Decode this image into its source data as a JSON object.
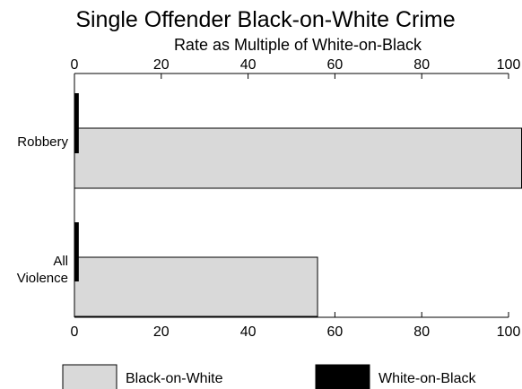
{
  "chart_data": {
    "type": "bar",
    "orientation": "horizontal",
    "title": "Single Offender Black-on-White Crime",
    "subtitle": "Rate as Multiple of White-on-Black",
    "categories": [
      {
        "lines": [
          "Robbery"
        ]
      },
      {
        "lines": [
          "All",
          "Violence"
        ]
      }
    ],
    "series": [
      {
        "name": "Black-on-White",
        "values": [
          103,
          56
        ],
        "color": "#d9d9d9"
      },
      {
        "name": "White-on-Black",
        "values": [
          1,
          1
        ],
        "color": "#000000"
      }
    ],
    "xlim": [
      0,
      100
    ],
    "xticks": [
      "0",
      "20",
      "40",
      "60",
      "80",
      "100"
    ],
    "axis_top": true,
    "axis_bottom": true,
    "grid": false,
    "legend_position": "bottom"
  }
}
